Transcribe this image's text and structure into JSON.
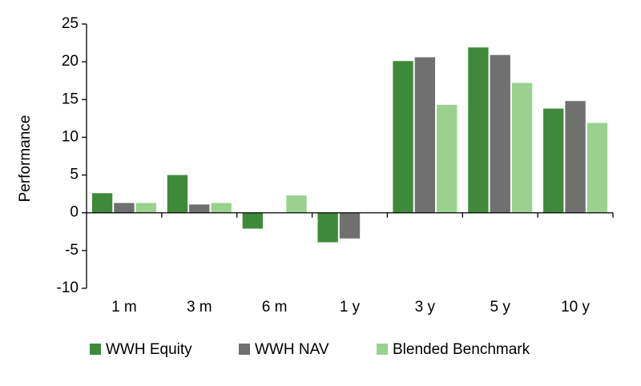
{
  "chart_data": {
    "type": "bar",
    "y_label": "Performance",
    "categories": [
      "1 m",
      "3 m",
      "6 m",
      "1 y",
      "3 y",
      "5 y",
      "10 y"
    ],
    "series": [
      {
        "name": "WWH Equity",
        "color": "#3f8a3a",
        "values": [
          2.6,
          5.0,
          -2.1,
          -3.9,
          20.1,
          21.9,
          13.8
        ]
      },
      {
        "name": "WWH NAV",
        "color": "#707070",
        "values": [
          1.3,
          1.1,
          0,
          -3.4,
          20.6,
          20.9,
          14.8
        ]
      },
      {
        "name": "Blended Benchmark",
        "color": "#98d28e",
        "values": [
          1.3,
          1.3,
          2.3,
          0,
          14.3,
          17.2,
          11.9
        ]
      }
    ],
    "ylim": [
      -10,
      25
    ],
    "yticks": [
      -10,
      -5,
      0,
      5,
      10,
      15,
      20,
      25
    ],
    "grid": false
  }
}
